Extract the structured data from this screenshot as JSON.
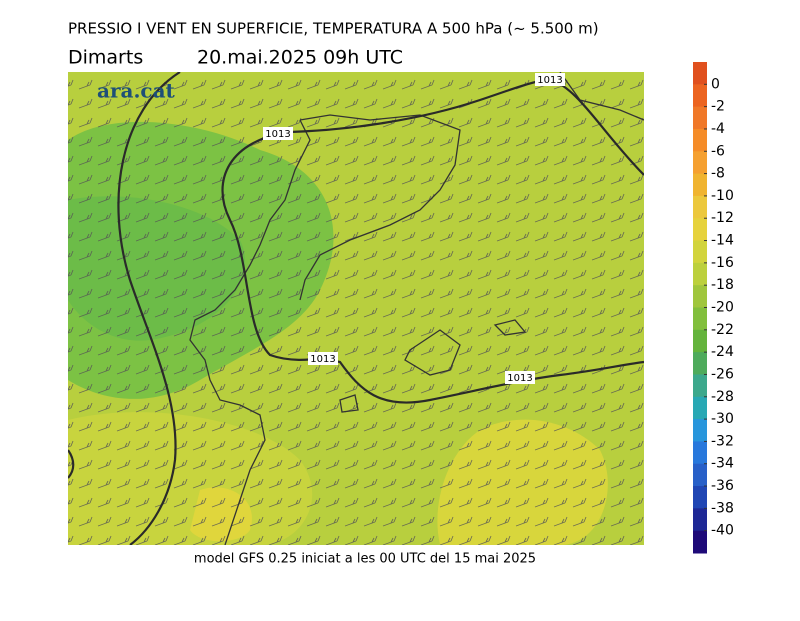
{
  "header": {
    "title": "PRESSIO I VENT EN SUPERFICIE, TEMPERATURA A 500 hPa (~ 5.500 m)",
    "day": "Dimarts",
    "date": "20.mai.2025 09h UTC"
  },
  "logo": "ara.cat",
  "isobars": [
    {
      "label": "1013"
    },
    {
      "label": "1013"
    },
    {
      "label": "1013"
    },
    {
      "label": "1013"
    }
  ],
  "colorbar": {
    "ticks": [
      0,
      -2,
      -4,
      -6,
      -8,
      -10,
      -12,
      -14,
      -16,
      -18,
      -20,
      -22,
      -24,
      -26,
      -28,
      -30,
      -32,
      -34,
      -36,
      -38,
      -40
    ],
    "colors": [
      "#e0501e",
      "#ec6420",
      "#f07828",
      "#f58c28",
      "#f5a030",
      "#f0b430",
      "#ecc83c",
      "#e6d23c",
      "#d2d43c",
      "#bcd03c",
      "#a0c63c",
      "#82bf3c",
      "#64b43c",
      "#4eab5c",
      "#3ca88c",
      "#28a8b4",
      "#2896dc",
      "#2878dc",
      "#2860c8",
      "#2046b4",
      "#1e2896",
      "#1e0a78"
    ]
  },
  "footer": "model GFS 0.25 iniciat a les 00 UTC del 15 mai 2025"
}
